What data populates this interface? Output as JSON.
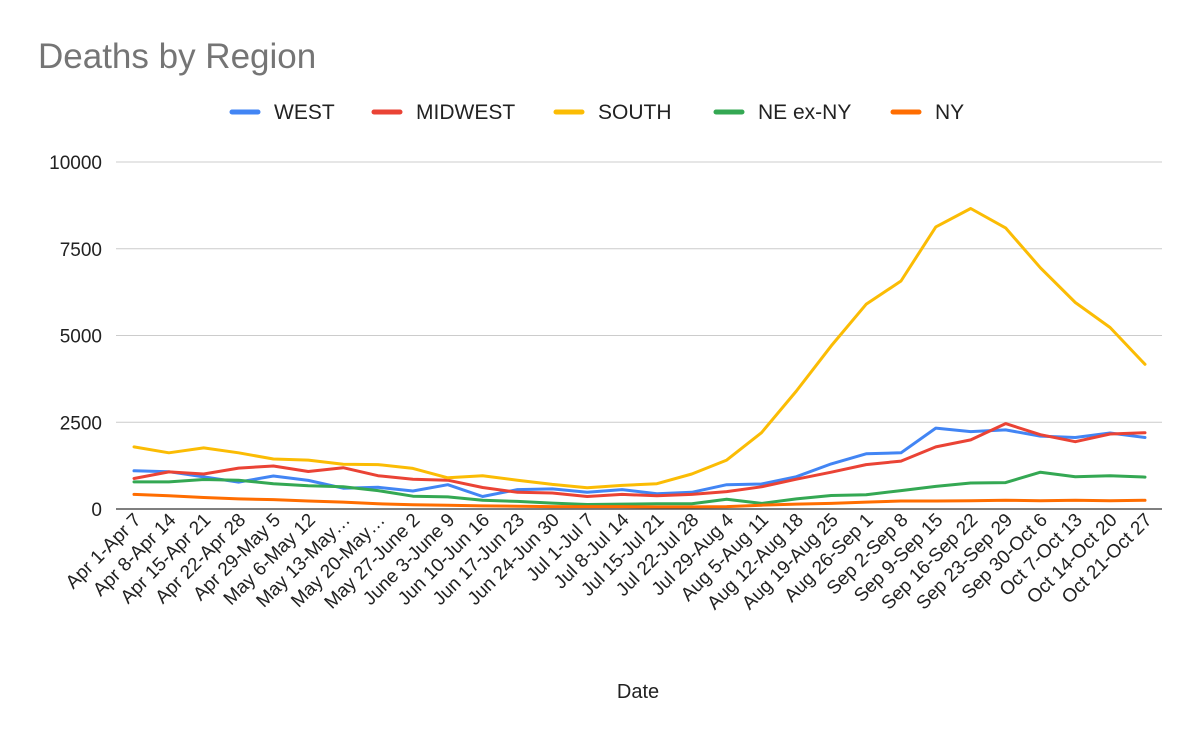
{
  "chart_data": {
    "type": "line",
    "title": "Deaths by Region",
    "xlabel": "Date",
    "ylabel": "",
    "ylim": [
      0,
      10000
    ],
    "yticks": [
      "0",
      "2500",
      "5000",
      "7500",
      "10000"
    ],
    "ytick_values": [
      0,
      2500,
      5000,
      7500,
      10000
    ],
    "grid": true,
    "legend_position": "top",
    "categories": [
      "Apr 1-Apr 7",
      "Apr 8-Apr 14",
      "Apr 15-Apr 21",
      "Apr 22-Apr 28",
      "Apr 29-May 5",
      "May 6-May 12",
      "May 13-May…",
      "May 20-May…",
      "May 27-June 2",
      "June 3-June 9",
      "Jun 10-Jun 16",
      "Jun 17-Jun 23",
      "Jun 24-Jun 30",
      "Jul 1-Jul 7",
      "Jul 8-Jul 14",
      "Jul 15-Jul 21",
      "Jul 22-Jul 28",
      "Jul 29-Aug 4",
      "Aug 5-Aug 11",
      "Aug 12-Aug 18",
      "Aug 19-Aug 25",
      "Aug 26-Sep 1",
      "Sep 2-Sep 8",
      "Sep 9-Sep 15",
      "Sep 16-Sep 22",
      "Sep 23-Sep 29",
      "Sep 30-Oct 6",
      "Oct 7-Oct 13",
      "Oct 14-Oct 20",
      "Oct 21-Oct 27"
    ],
    "series": [
      {
        "name": "WEST",
        "color": "#4285F4",
        "values": [
          1100,
          1075,
          925,
          775,
          950,
          825,
          600,
          625,
          520,
          700,
          360,
          560,
          580,
          480,
          560,
          440,
          480,
          700,
          720,
          930,
          1300,
          1590,
          1620,
          2330,
          2230,
          2280,
          2100,
          2060,
          2190,
          2060
        ]
      },
      {
        "name": "MIDWEST",
        "color": "#EA4335",
        "values": [
          880,
          1070,
          1010,
          1180,
          1240,
          1080,
          1190,
          960,
          860,
          830,
          620,
          480,
          460,
          360,
          420,
          380,
          420,
          500,
          640,
          860,
          1060,
          1280,
          1380,
          1790,
          1990,
          2460,
          2140,
          1940,
          2160,
          2200
        ]
      },
      {
        "name": "SOUTH",
        "color": "#FBBC04",
        "values": [
          1790,
          1620,
          1760,
          1620,
          1440,
          1410,
          1290,
          1280,
          1170,
          900,
          960,
          830,
          710,
          610,
          680,
          730,
          1010,
          1410,
          2200,
          3400,
          4700,
          5900,
          6570,
          8130,
          8660,
          8100,
          6950,
          5950,
          5230,
          4170
        ]
      },
      {
        "name": "NE ex-NY",
        "color": "#34A853",
        "values": [
          780,
          780,
          850,
          830,
          730,
          670,
          640,
          530,
          370,
          350,
          250,
          220,
          170,
          130,
          140,
          150,
          150,
          280,
          160,
          290,
          390,
          410,
          530,
          650,
          750,
          760,
          1060,
          930,
          960,
          920
        ]
      },
      {
        "name": "NY",
        "color": "#FF6D01",
        "values": [
          420,
          380,
          330,
          290,
          270,
          230,
          200,
          150,
          120,
          110,
          90,
          80,
          70,
          70,
          70,
          60,
          60,
          70,
          110,
          140,
          160,
          200,
          230,
          230,
          240,
          250,
          240,
          250,
          240,
          250
        ]
      }
    ]
  }
}
